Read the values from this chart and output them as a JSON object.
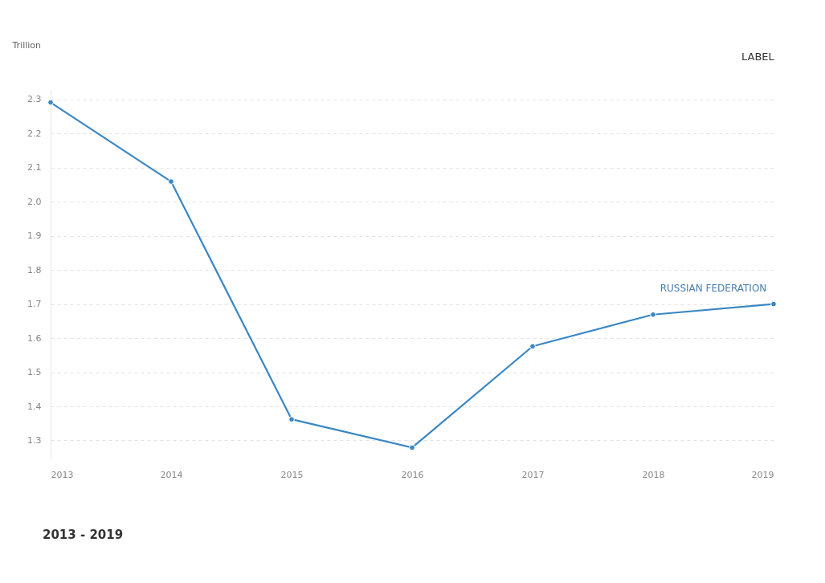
{
  "chart_data": {
    "type": "line",
    "ylabel": "Trillion",
    "x": [
      2013,
      2014,
      2015,
      2016,
      2017,
      2018,
      2019
    ],
    "series": [
      {
        "name": "RUSSIAN FEDERATION",
        "color": "#3a87c4",
        "values": [
          2.291,
          2.059,
          1.362,
          1.279,
          1.576,
          1.669,
          1.7
        ]
      }
    ],
    "xlim": [
      2013,
      2019
    ],
    "xticks": [
      2013,
      2014,
      2015,
      2016,
      2017,
      2018,
      2019
    ],
    "ylim": [
      1.247,
      2.33
    ],
    "yticks": [
      {
        "value": 1.3,
        "label": "1.3"
      },
      {
        "value": 1.4,
        "label": "1.4"
      },
      {
        "value": 1.5,
        "label": "1.5"
      },
      {
        "value": 1.6,
        "label": "1.6"
      },
      {
        "value": 1.7,
        "label": "1.7"
      },
      {
        "value": 1.8,
        "label": "1.8"
      },
      {
        "value": 1.9,
        "label": "1.9"
      },
      {
        "value": 2.0,
        "label": "2.0"
      },
      {
        "value": 2.1,
        "label": "2.1"
      },
      {
        "value": 2.2,
        "label": "2.2"
      },
      {
        "value": 2.3,
        "label": "2.3"
      }
    ],
    "grid": "y",
    "marker": "circle",
    "line_style": "solid",
    "legend": false,
    "annotations": [
      "LABEL",
      "2013 - 2019"
    ]
  }
}
